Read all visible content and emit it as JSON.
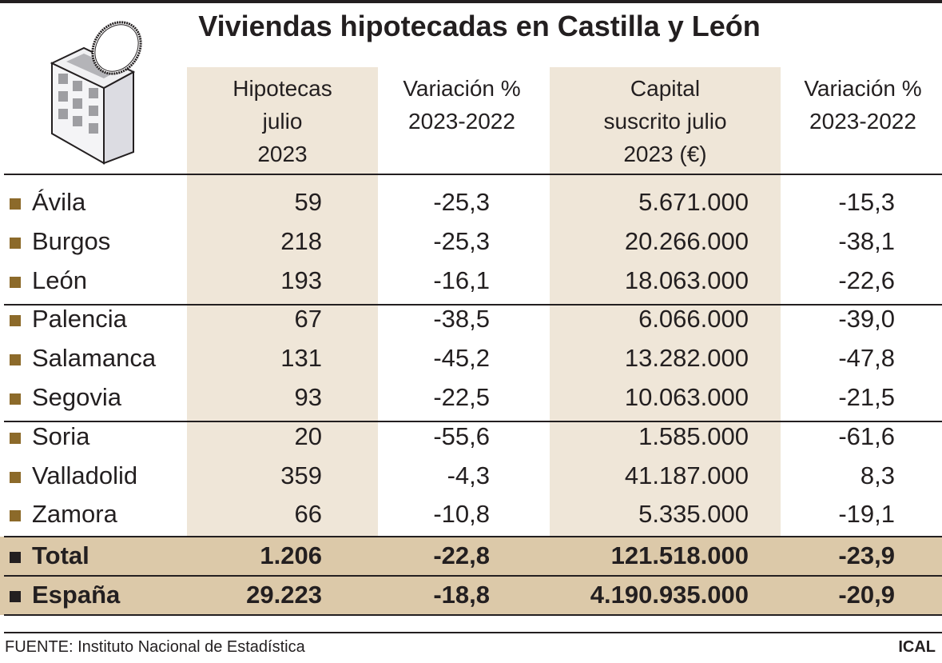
{
  "title": "Viviendas hipotecadas en Castilla y León",
  "headers": [
    "Hipotecas julio 2023",
    "Variación % 2023-2022",
    "Capital suscrito julio 2023 (€)",
    "Variación % 2023-2022"
  ],
  "header_lines": [
    [
      "Hipotecas",
      "julio",
      "2023"
    ],
    [
      "Variación %",
      "2023-2022"
    ],
    [
      "Capital",
      "suscrito julio",
      "2023 (€)"
    ],
    [
      "Variación %",
      "2023-2022"
    ]
  ],
  "rows": [
    [
      "Ávila",
      "59",
      "-25,3",
      "5.671.000",
      "-15,3"
    ],
    [
      "Burgos",
      "218",
      "-25,3",
      "20.266.000",
      "-38,1"
    ],
    [
      "León",
      "193",
      "-16,1",
      "18.063.000",
      "-22,6"
    ],
    [
      "Palencia",
      "67",
      "-38,5",
      "6.066.000",
      "-39,0"
    ],
    [
      "Salamanca",
      "131",
      "-45,2",
      "13.282.000",
      "-47,8"
    ],
    [
      "Segovia",
      "93",
      "-22,5",
      "10.063.000",
      "-21,5"
    ],
    [
      "Soria",
      "20",
      "-55,6",
      "1.585.000",
      "-61,6"
    ],
    [
      "Valladolid",
      "359",
      "-4,3",
      "41.187.000",
      "8,3"
    ],
    [
      "Zamora",
      "66",
      "-10,8",
      "5.335.000",
      "-19,1"
    ],
    [
      "Total",
      "1.206",
      "-22,8",
      "121.518.000",
      "-23,9"
    ],
    [
      "España",
      "29.223",
      "-18,8",
      "4.190.935.000",
      "-20,9"
    ]
  ],
  "footer": {
    "source": "FUENTE: Instituto Nacional de Estadística",
    "credit": "ICAL"
  },
  "icon": "building-with-coin-icon",
  "colors": {
    "column_shade": "#efe6d8",
    "summary_rows": "#dcc9a9",
    "bullet": "#8c6a2a"
  },
  "chart_data": {
    "type": "table",
    "title": "Viviendas hipotecadas en Castilla y León",
    "columns": [
      "",
      "Hipotecas julio 2023",
      "Variación % 2023-2022",
      "Capital suscrito julio 2023 (€)",
      "Variación % 2023-2022"
    ],
    "rows": [
      [
        "Ávila",
        59,
        -25.3,
        5671000,
        -15.3
      ],
      [
        "Burgos",
        218,
        -25.3,
        20266000,
        -38.1
      ],
      [
        "León",
        193,
        -16.1,
        18063000,
        -22.6
      ],
      [
        "Palencia",
        67,
        -38.5,
        6066000,
        -39.0
      ],
      [
        "Salamanca",
        131,
        -45.2,
        13282000,
        -47.8
      ],
      [
        "Segovia",
        93,
        -22.5,
        10063000,
        -21.5
      ],
      [
        "Soria",
        20,
        -55.6,
        1585000,
        -61.6
      ],
      [
        "Valladolid",
        359,
        -4.3,
        41187000,
        8.3
      ],
      [
        "Zamora",
        66,
        -10.8,
        5335000,
        -19.1
      ],
      [
        "Total",
        1206,
        -22.8,
        121518000,
        -23.9
      ],
      [
        "España",
        29223,
        -18.8,
        4190935000,
        -20.9
      ]
    ]
  }
}
